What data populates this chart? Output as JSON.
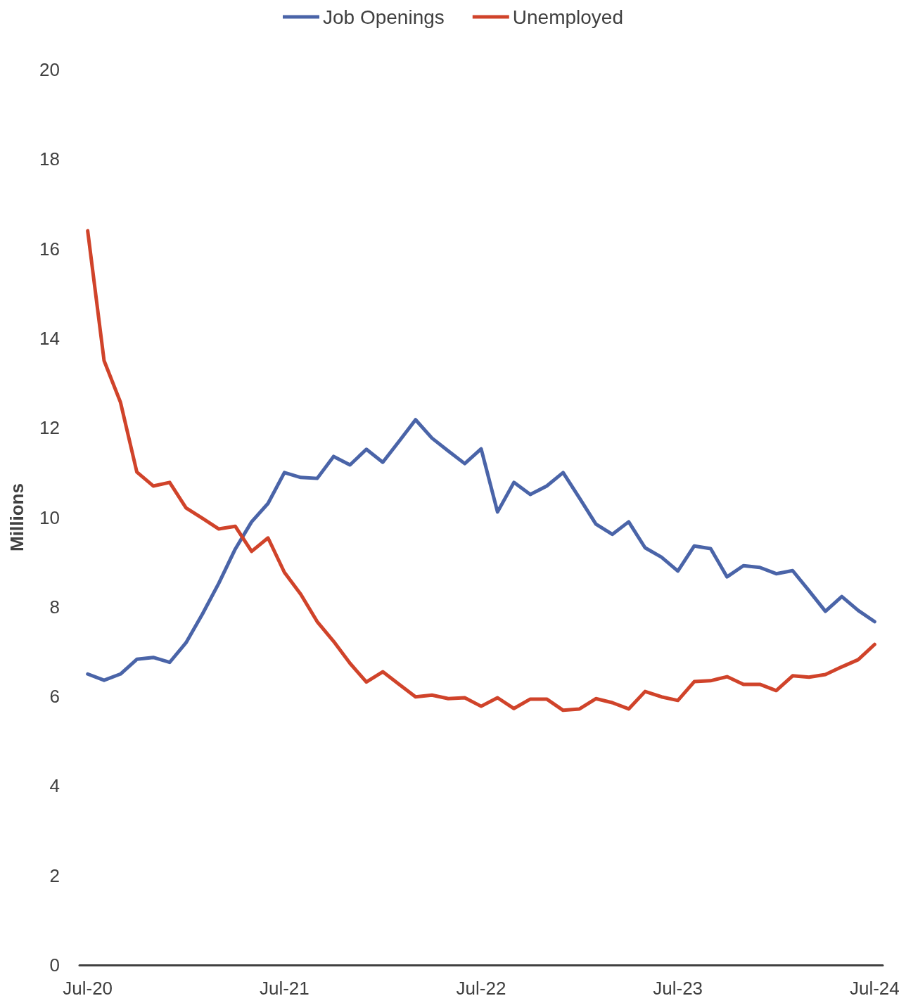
{
  "chart_data": {
    "type": "line",
    "ylabel": "Millions",
    "categories": [
      "Jul-20",
      null,
      null,
      null,
      null,
      null,
      null,
      null,
      null,
      null,
      null,
      null,
      "Jul-21",
      null,
      null,
      null,
      null,
      null,
      null,
      null,
      null,
      null,
      null,
      null,
      "Jul-22",
      null,
      null,
      null,
      null,
      null,
      null,
      null,
      null,
      null,
      null,
      null,
      "Jul-23",
      null,
      null,
      null,
      null,
      null,
      null,
      null,
      null,
      null,
      null,
      null,
      "Jul-24"
    ],
    "series": [
      {
        "name": "Job Openings",
        "color": "#4a64a8",
        "values": [
          6.5,
          6.36,
          6.5,
          6.83,
          6.87,
          6.76,
          7.2,
          7.84,
          8.53,
          9.29,
          9.9,
          10.31,
          11.0,
          10.89,
          10.87,
          11.36,
          11.17,
          11.52,
          11.23,
          11.7,
          12.18,
          11.77,
          11.48,
          11.2,
          11.53,
          10.12,
          10.78,
          10.51,
          10.7,
          11.0,
          10.43,
          9.85,
          9.62,
          9.9,
          9.32,
          9.11,
          8.8,
          9.36,
          9.3,
          8.67,
          8.92,
          8.88,
          8.74,
          8.81,
          8.36,
          7.9,
          8.23,
          7.92,
          7.67
        ]
      },
      {
        "name": "Unemployed",
        "color": "#d0432a",
        "values": [
          16.4,
          13.5,
          12.57,
          11.01,
          10.7,
          10.78,
          10.21,
          9.98,
          9.74,
          9.8,
          9.24,
          9.54,
          8.77,
          8.28,
          7.67,
          7.23,
          6.74,
          6.32,
          6.55,
          6.27,
          5.99,
          6.03,
          5.95,
          5.97,
          5.78,
          5.97,
          5.73,
          5.94,
          5.94,
          5.69,
          5.72,
          5.95,
          5.86,
          5.72,
          6.11,
          5.99,
          5.91,
          6.33,
          6.35,
          6.44,
          6.27,
          6.27,
          6.13,
          6.46,
          6.43,
          6.49,
          6.66,
          6.82,
          7.16
        ]
      }
    ],
    "ylim": [
      0,
      20
    ],
    "yticks": [
      0,
      2,
      4,
      6,
      8,
      10,
      12,
      14,
      16,
      18,
      20
    ],
    "grid": false,
    "legend": "top",
    "marker": "none",
    "line_style": "solid"
  }
}
